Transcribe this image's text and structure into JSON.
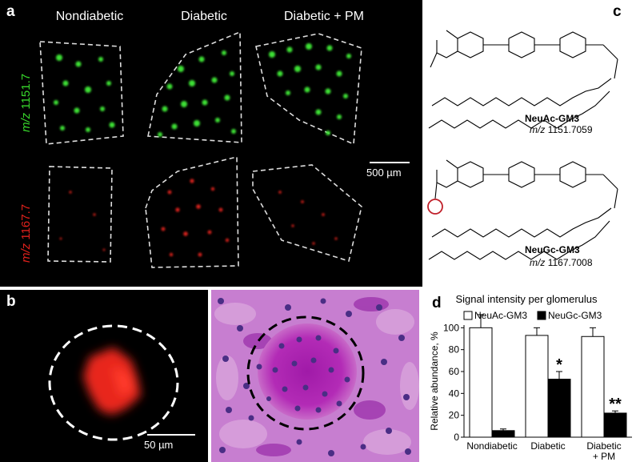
{
  "panels": {
    "a": {
      "letter": "a",
      "column_titles": [
        "Nondiabetic",
        "Diabetic",
        "Diabetic + PM"
      ],
      "row_labels": [
        {
          "prefix": "m/z",
          "value": "1151.7",
          "color": "#37d62b"
        },
        {
          "prefix": "m/z",
          "value": "1167.7",
          "color": "#e0211c"
        }
      ],
      "scale_bar": "500 µm"
    },
    "b": {
      "letter": "b",
      "scale_bar": "50 µm"
    },
    "c": {
      "letter": "c",
      "structures": [
        {
          "name": "NeuAc-GM3",
          "mz_prefix": "m/z",
          "mz_value": "1151.7059"
        },
        {
          "name": "NeuGc-GM3",
          "mz_prefix": "m/z",
          "mz_value": "1167.7008"
        }
      ]
    },
    "d": {
      "letter": "d",
      "significance": [
        "*",
        "**"
      ]
    }
  },
  "chart_data": {
    "type": "bar",
    "title": "Signal intensity per glomerulus",
    "ylabel": "Relative abundance, %",
    "categories": [
      "Nondiabetic",
      "Diabetic",
      "Diabetic\n+ PM"
    ],
    "category_lines": [
      [
        "Nondiabetic"
      ],
      [
        "Diabetic"
      ],
      [
        "Diabetic",
        "+ PM"
      ]
    ],
    "ylim": [
      0,
      120
    ],
    "yticks": [
      0,
      20,
      40,
      60,
      80,
      100
    ],
    "legend_position": "top",
    "series": [
      {
        "name": "NeuAc-GM3",
        "values": [
          100,
          93,
          92
        ],
        "errors": [
          12,
          7,
          8
        ],
        "color": "#ffffff"
      },
      {
        "name": "NeuGc-GM3",
        "values": [
          6,
          53,
          22
        ],
        "errors": [
          1.5,
          7,
          2
        ],
        "color": "#000000"
      }
    ],
    "annotations": [
      {
        "text": "*",
        "category": 1,
        "series": 1
      },
      {
        "text": "**",
        "category": 2,
        "series": 1
      }
    ]
  }
}
